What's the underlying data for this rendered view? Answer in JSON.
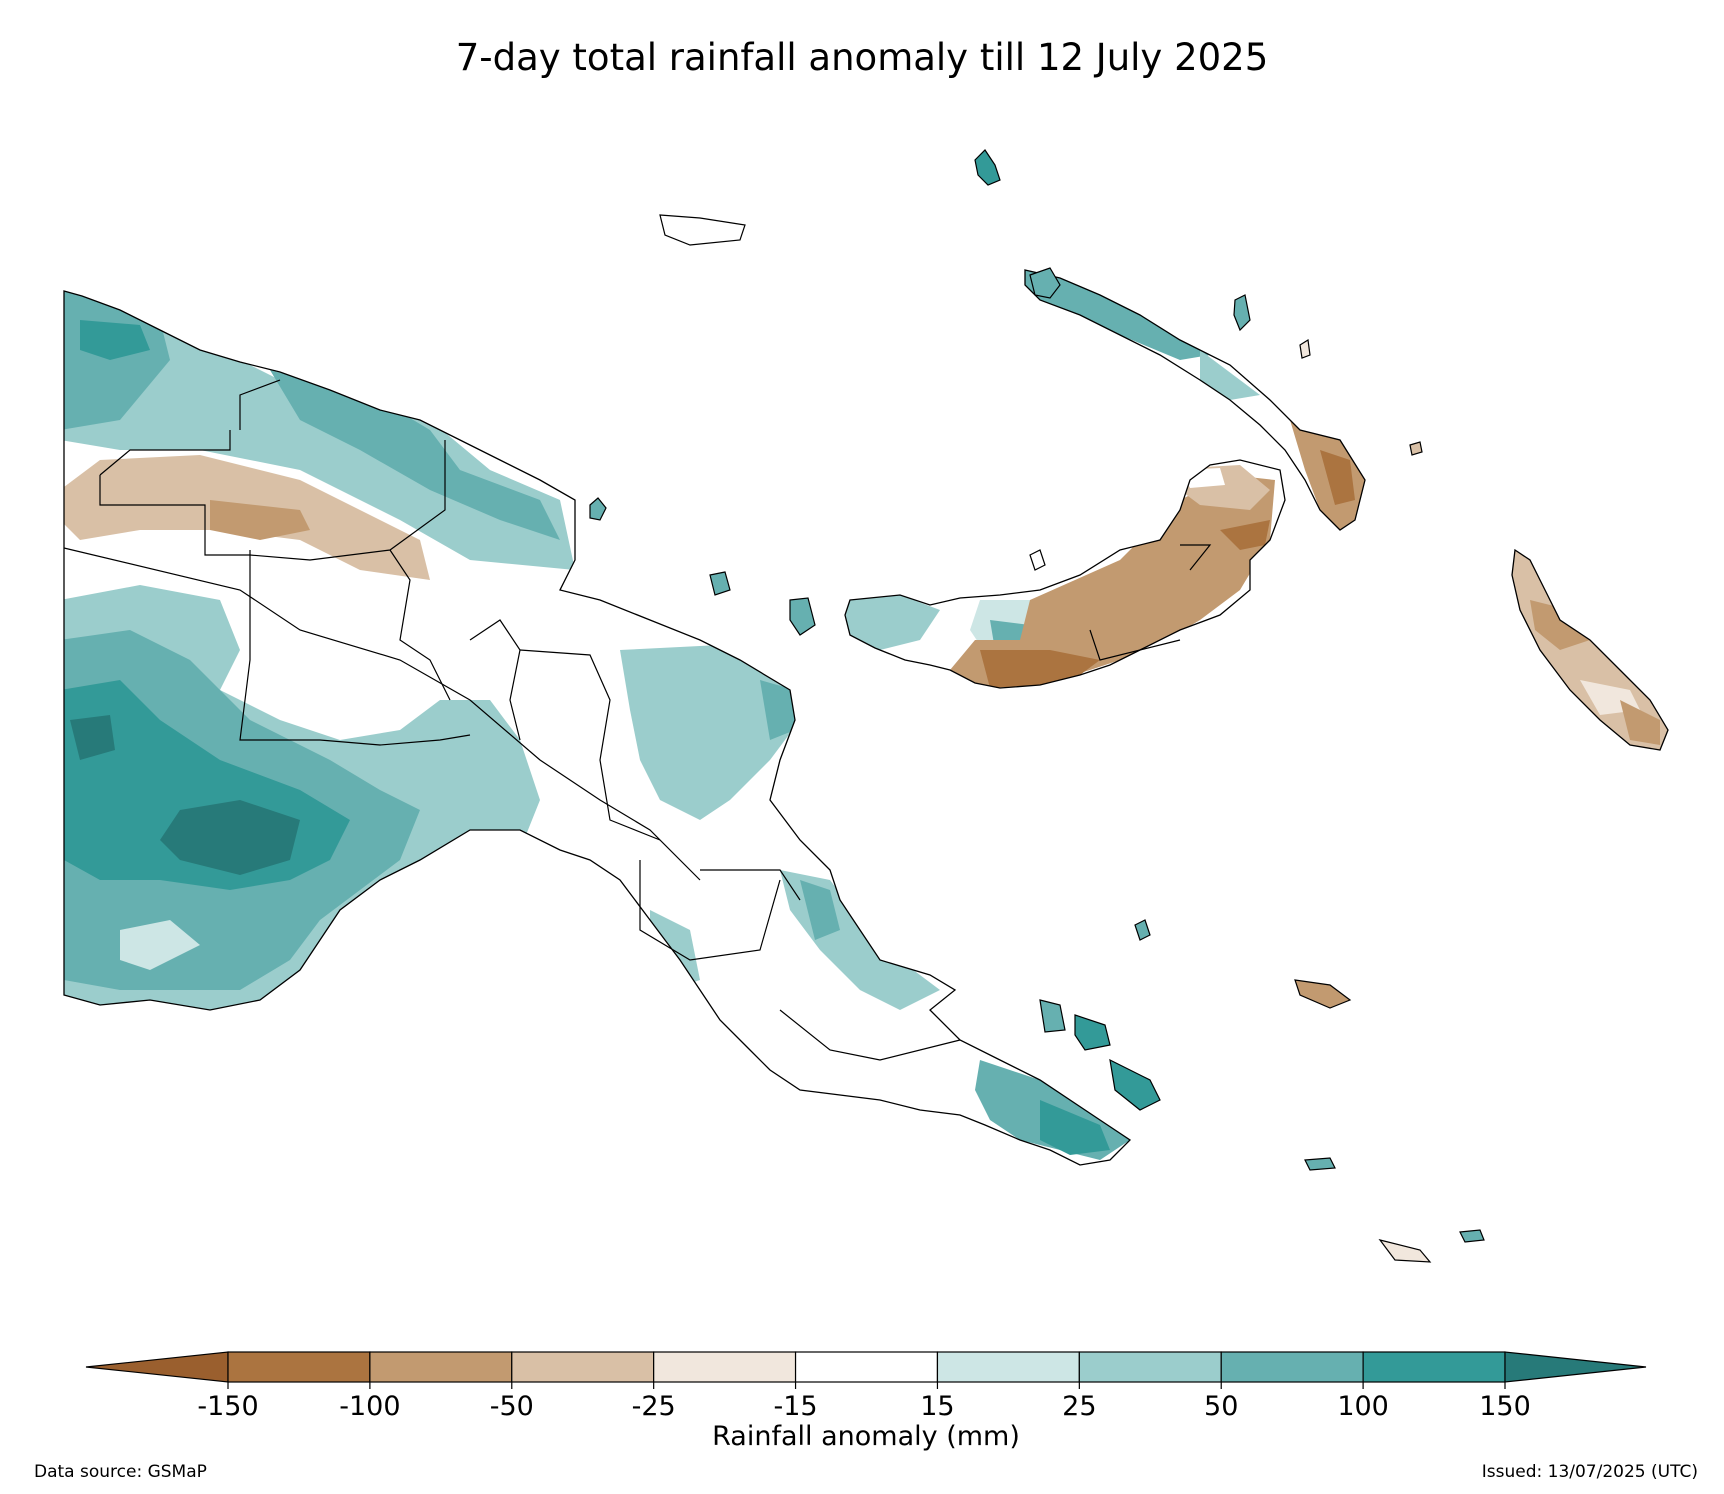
{
  "title": "7-day total rainfall anomaly till 12 July 2025",
  "colorbar": {
    "label": "Rainfall anomaly (mm)",
    "ticks": [
      "-150",
      "-100",
      "-50",
      "-25",
      "-15",
      "15",
      "25",
      "50",
      "100",
      "150"
    ],
    "colors": [
      "#9a5f2e",
      "#ab7440",
      "#c29a70",
      "#d9c0a6",
      "#f1e7dd",
      "#ffffff",
      "#cde6e5",
      "#9bcdcc",
      "#66b0b0",
      "#339a98",
      "#277a79"
    ],
    "extend": "both"
  },
  "footer": {
    "source": "Data source: GSMaP",
    "issued": "Issued: 13/07/2025 (UTC)"
  },
  "legend_classes": [
    "< -150",
    "-150 to -100",
    "-100 to -50",
    "-50 to -25",
    "-25 to -15",
    "-15 to 15",
    "15 to 25",
    "25 to 50",
    "50 to 100",
    "100 to 150",
    "> 150"
  ]
}
